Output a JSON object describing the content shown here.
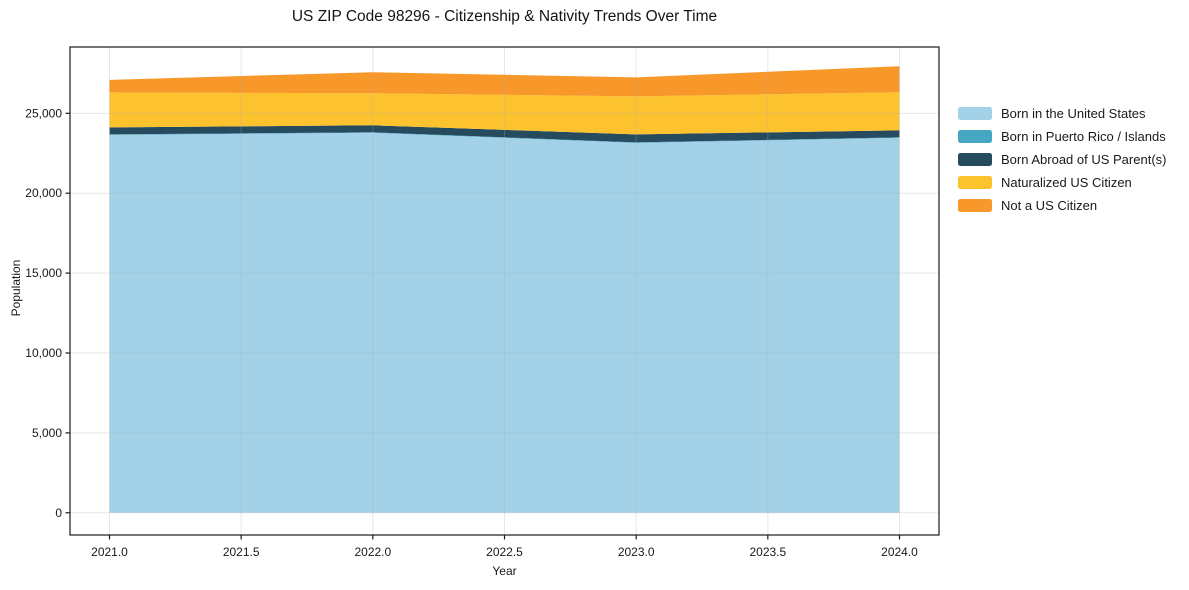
{
  "chart_data": {
    "type": "area",
    "stacked": true,
    "title": "US ZIP Code 98296 - Citizenship & Nativity Trends Over Time",
    "xlabel": "Year",
    "ylabel": "Population",
    "x": [
      2021,
      2022,
      2023,
      2024
    ],
    "series": [
      {
        "name": "Born in the United States",
        "color": "#a2d1e8",
        "values": [
          23650,
          23780,
          23150,
          23470
        ]
      },
      {
        "name": "Born in Puerto Rico / Islands",
        "color": "#46a7c3",
        "values": [
          30,
          30,
          30,
          30
        ]
      },
      {
        "name": "Born Abroad of US Parent(s)",
        "color": "#264a5e",
        "values": [
          440,
          440,
          500,
          440
        ]
      },
      {
        "name": "Naturalized US Citizen",
        "color": "#fdc32f",
        "values": [
          2190,
          2000,
          2380,
          2380
        ]
      },
      {
        "name": "Not a US Citizen",
        "color": "#f8982a",
        "values": [
          780,
          1320,
          1190,
          1630
        ]
      }
    ],
    "xticks": {
      "values": [
        2021.0,
        2021.5,
        2022.0,
        2022.5,
        2023.0,
        2023.5,
        2024.0
      ],
      "labels": [
        "2021.0",
        "2021.5",
        "2022.0",
        "2022.5",
        "2023.0",
        "2023.5",
        "2024.0"
      ]
    },
    "yticks": {
      "values": [
        0,
        5000,
        10000,
        15000,
        20000,
        25000
      ],
      "labels": [
        "0",
        "5,000",
        "10,000",
        "15,000",
        "20,000",
        "25,000"
      ]
    },
    "xlim": [
      2020.85,
      2024.15
    ],
    "ylim": [
      -1390,
      29150
    ],
    "grid": true,
    "legend_position": "right",
    "colors": {
      "spine": "#1a1a1a",
      "gridline": "rgba(176,176,176,0.30)",
      "background": "#ffffff"
    }
  }
}
